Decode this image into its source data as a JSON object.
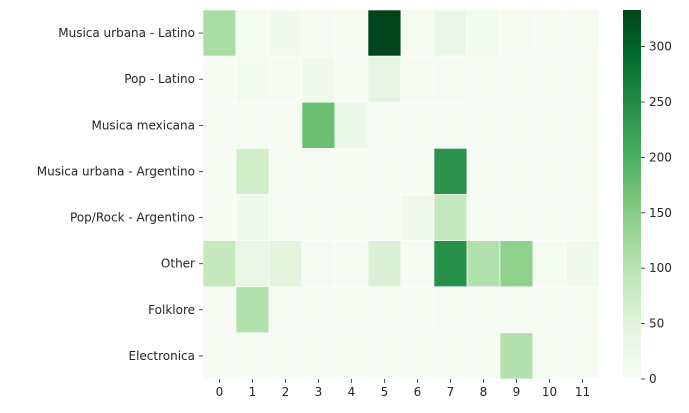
{
  "chart_data": {
    "type": "heatmap",
    "title": "",
    "xlabel": "",
    "ylabel": "",
    "x_categories": [
      "0",
      "1",
      "2",
      "3",
      "4",
      "5",
      "6",
      "7",
      "8",
      "9",
      "10",
      "11"
    ],
    "y_categories": [
      "Musica urbana - Latino",
      "Pop - Latino",
      "Musica mexicana",
      "Musica urbana - Argentino",
      "Pop/Rock - Argentino",
      "Other",
      "Folklore",
      "Electronica"
    ],
    "values": [
      [
        115,
        8,
        15,
        5,
        5,
        333,
        5,
        30,
        12,
        4,
        3,
        4
      ],
      [
        3,
        10,
        5,
        15,
        3,
        40,
        4,
        5,
        3,
        3,
        3,
        3
      ],
      [
        3,
        3,
        3,
        175,
        25,
        3,
        3,
        3,
        3,
        3,
        3,
        3
      ],
      [
        3,
        70,
        3,
        3,
        3,
        3,
        3,
        240,
        3,
        3,
        3,
        3
      ],
      [
        3,
        20,
        3,
        3,
        3,
        3,
        15,
        85,
        3,
        3,
        3,
        3
      ],
      [
        85,
        35,
        45,
        5,
        5,
        55,
        5,
        245,
        105,
        140,
        8,
        15
      ],
      [
        3,
        105,
        3,
        3,
        3,
        3,
        3,
        5,
        3,
        3,
        3,
        3
      ],
      [
        3,
        3,
        3,
        3,
        3,
        3,
        3,
        3,
        3,
        105,
        3,
        3
      ]
    ],
    "colormap": "Greens",
    "colorbar": {
      "min": 0,
      "max": 333,
      "ticks": [
        0,
        50,
        100,
        150,
        200,
        250,
        300
      ]
    },
    "grid": false,
    "legend": "colorbar-right"
  }
}
